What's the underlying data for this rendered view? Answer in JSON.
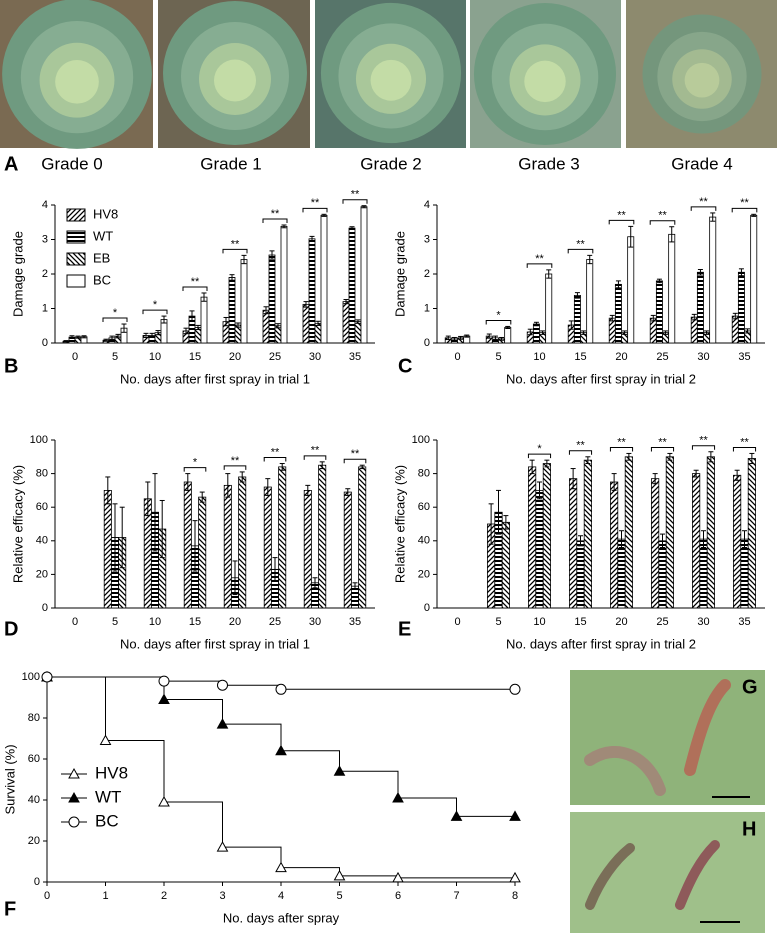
{
  "figure_a": {
    "panel": "A",
    "labels": [
      "Grade 0",
      "Grade 1",
      "Grade 2",
      "Grade 3",
      "Grade 4"
    ]
  },
  "chart_data": [
    {
      "type": "bar",
      "panel": "B",
      "xlabel": "No. days after first spray in trial 1",
      "ylabel": "Damage grade",
      "categories": [
        "0",
        "5",
        "10",
        "15",
        "20",
        "25",
        "30",
        "35"
      ],
      "series": [
        {
          "name": "HV8",
          "pattern": "diagonal",
          "values": [
            0.05,
            0.08,
            0.22,
            0.35,
            0.62,
            0.95,
            1.12,
            1.2
          ],
          "errors": [
            0.02,
            0.03,
            0.06,
            0.08,
            0.12,
            0.1,
            0.08,
            0.06
          ]
        },
        {
          "name": "WT",
          "pattern": "horizontal",
          "values": [
            0.17,
            0.15,
            0.22,
            0.78,
            1.9,
            2.55,
            3.02,
            3.33
          ],
          "errors": [
            0.04,
            0.05,
            0.06,
            0.15,
            0.08,
            0.12,
            0.07,
            0.04
          ]
        },
        {
          "name": "EB",
          "pattern": "backslash",
          "values": [
            0.17,
            0.2,
            0.3,
            0.45,
            0.52,
            0.5,
            0.57,
            0.62
          ],
          "errors": [
            0.03,
            0.05,
            0.06,
            0.06,
            0.06,
            0.06,
            0.06,
            0.05
          ]
        },
        {
          "name": "BC",
          "pattern": "none",
          "values": [
            0.18,
            0.43,
            0.68,
            1.33,
            2.42,
            3.38,
            3.7,
            3.95
          ],
          "errors": [
            0.03,
            0.12,
            0.1,
            0.12,
            0.12,
            0.04,
            0.03,
            0.03
          ]
        }
      ],
      "ylim": [
        0,
        4
      ],
      "yticks": [
        0,
        1,
        2,
        3,
        4
      ],
      "legend": "upper left",
      "significance": [
        null,
        "*",
        "*",
        "**",
        "**",
        "**",
        "**",
        "**"
      ]
    },
    {
      "type": "bar",
      "panel": "C",
      "xlabel": "No. days after first spray in trial 2",
      "ylabel": "Damage grade",
      "categories": [
        "0",
        "5",
        "10",
        "15",
        "20",
        "25",
        "30",
        "35"
      ],
      "series": [
        {
          "pattern": "diagonal",
          "values": [
            0.15,
            0.2,
            0.32,
            0.52,
            0.72,
            0.72,
            0.75,
            0.78
          ],
          "errors": [
            0.05,
            0.06,
            0.08,
            0.12,
            0.08,
            0.08,
            0.08,
            0.08
          ]
        },
        {
          "pattern": "horizontal",
          "values": [
            0.12,
            0.15,
            0.55,
            1.38,
            1.7,
            1.8,
            2.05,
            2.05
          ],
          "errors": [
            0.04,
            0.05,
            0.05,
            0.08,
            0.1,
            0.05,
            0.08,
            0.1
          ]
        },
        {
          "pattern": "backslash",
          "values": [
            0.15,
            0.12,
            0.3,
            0.3,
            0.3,
            0.3,
            0.3,
            0.35
          ],
          "errors": [
            0.04,
            0.04,
            0.05,
            0.05,
            0.05,
            0.05,
            0.05,
            0.06
          ]
        },
        {
          "pattern": "none",
          "values": [
            0.2,
            0.45,
            2.0,
            2.42,
            3.08,
            3.15,
            3.65,
            3.7
          ],
          "errors": [
            0.03,
            0.03,
            0.12,
            0.12,
            0.3,
            0.22,
            0.12,
            0.03
          ]
        }
      ],
      "ylim": [
        0,
        4
      ],
      "yticks": [
        0,
        1,
        2,
        3,
        4
      ],
      "significance": [
        null,
        "*",
        "**",
        "**",
        "**",
        "**",
        "**",
        "**"
      ]
    },
    {
      "type": "bar",
      "panel": "D",
      "xlabel": "No. days after first spray in trial 1",
      "ylabel": "Relative efficacy (%)",
      "categories": [
        "0",
        "5",
        "10",
        "15",
        "20",
        "25",
        "30",
        "35"
      ],
      "series": [
        {
          "pattern": "diagonal",
          "values": [
            null,
            70,
            65,
            75,
            73,
            72,
            70,
            69
          ],
          "errors": [
            null,
            8,
            10,
            5,
            7,
            5,
            3,
            2
          ]
        },
        {
          "pattern": "horizontal",
          "values": [
            null,
            42,
            57,
            37,
            18,
            23,
            15,
            13
          ],
          "errors": [
            null,
            20,
            23,
            15,
            10,
            7,
            3,
            2
          ]
        },
        {
          "pattern": "backslash",
          "values": [
            null,
            42,
            47,
            66,
            78,
            84,
            85,
            84
          ],
          "errors": [
            null,
            18,
            17,
            3,
            3,
            2,
            2,
            1
          ]
        }
      ],
      "ylim": [
        0,
        100
      ],
      "yticks": [
        0,
        20,
        40,
        60,
        80,
        100
      ],
      "significance": [
        null,
        null,
        null,
        "*",
        "**",
        "**",
        "**",
        "**"
      ]
    },
    {
      "type": "bar",
      "panel": "E",
      "xlabel": "No. days after first spray in trial 2",
      "ylabel": "Relative efficacy (%)",
      "categories": [
        "0",
        "5",
        "10",
        "15",
        "20",
        "25",
        "30",
        "35"
      ],
      "series": [
        {
          "pattern": "diagonal",
          "values": [
            null,
            50,
            84,
            77,
            75,
            77,
            80,
            79
          ],
          "errors": [
            null,
            12,
            4,
            6,
            5,
            3,
            2,
            3
          ]
        },
        {
          "pattern": "horizontal",
          "values": [
            null,
            57,
            70,
            40,
            41,
            40,
            41,
            41
          ],
          "errors": [
            null,
            13,
            5,
            3,
            5,
            4,
            5,
            5
          ]
        },
        {
          "pattern": "backslash",
          "values": [
            null,
            51,
            86,
            88,
            90,
            90,
            90,
            89
          ],
          "errors": [
            null,
            4,
            2,
            2,
            2,
            2,
            3,
            3
          ]
        }
      ],
      "ylim": [
        0,
        100
      ],
      "yticks": [
        0,
        20,
        40,
        60,
        80,
        100
      ],
      "significance": [
        null,
        null,
        "*",
        "**",
        "**",
        "**",
        "**",
        "**"
      ]
    },
    {
      "type": "step",
      "panel": "F",
      "xlabel": "No. days after spray",
      "ylabel": "Survival (%)",
      "xlim": [
        0,
        8
      ],
      "xticks": [
        0,
        1,
        2,
        3,
        4,
        5,
        6,
        7,
        8
      ],
      "ylim": [
        0,
        100
      ],
      "yticks": [
        0,
        20,
        40,
        60,
        80,
        100
      ],
      "legend": "lower left",
      "series": [
        {
          "name": "HV8",
          "marker": "triangle-open",
          "x": [
            0,
            1,
            2,
            3,
            4,
            5,
            6,
            8
          ],
          "values": [
            100,
            69,
            39,
            17,
            7,
            3,
            2,
            2
          ]
        },
        {
          "name": "WT",
          "marker": "triangle-filled",
          "x": [
            0,
            2,
            3,
            4,
            5,
            6,
            7,
            8
          ],
          "values": [
            100,
            89,
            77,
            64,
            54,
            41,
            32,
            32
          ]
        },
        {
          "name": "BC",
          "marker": "circle-open",
          "x": [
            0,
            2,
            3,
            4,
            8
          ],
          "values": [
            100,
            98,
            96,
            94,
            94
          ]
        }
      ]
    }
  ],
  "figure_g": {
    "panel": "G"
  },
  "figure_h": {
    "panel": "H"
  }
}
